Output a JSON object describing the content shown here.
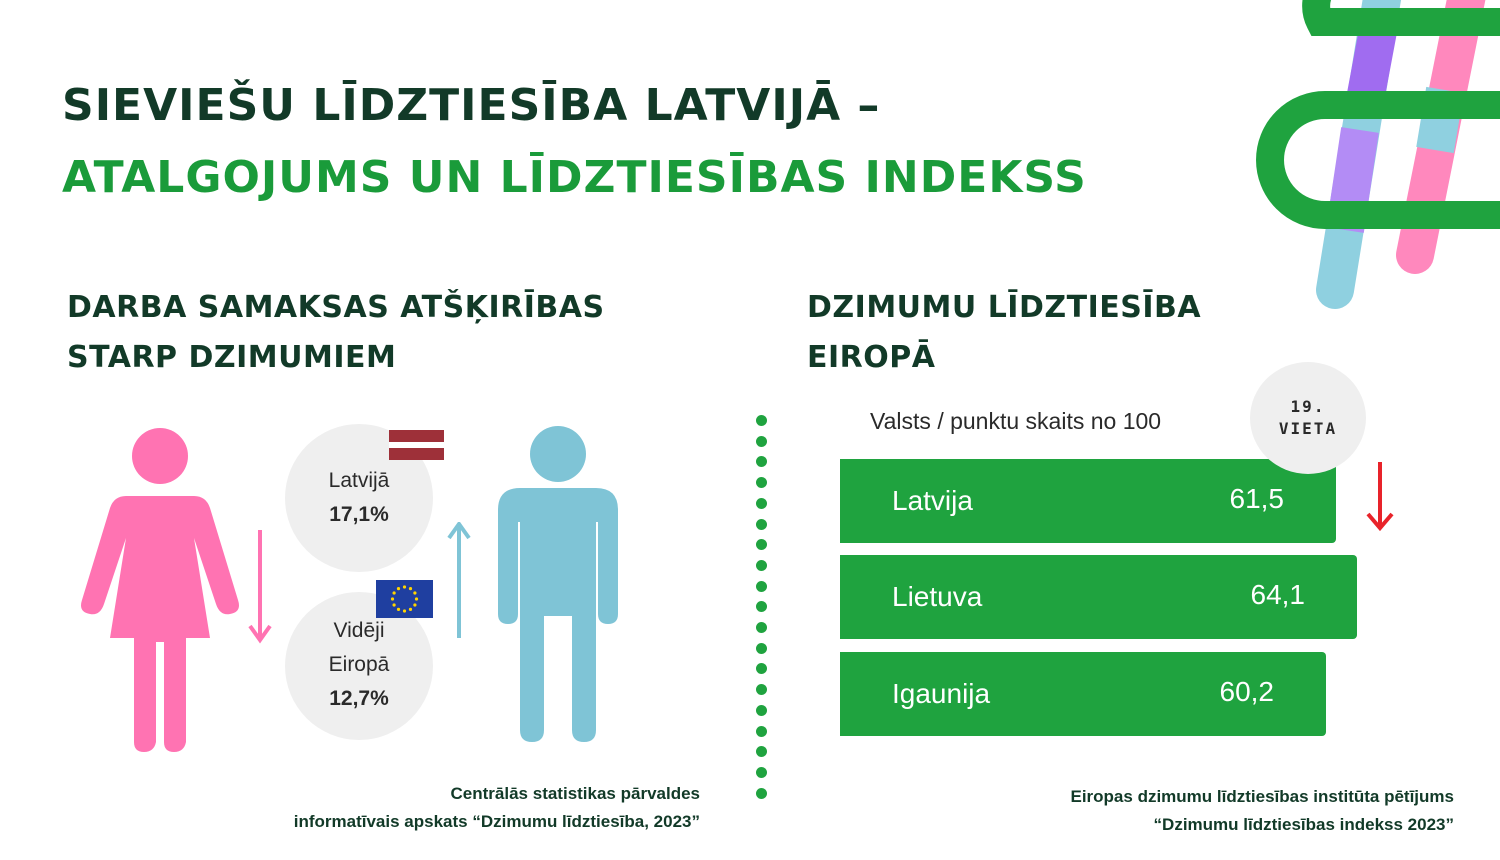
{
  "title": {
    "line1": "SIEVIEŠU LĪDZTIESĪBA LATVIJĀ –",
    "line2": "ATALGOJUMS UN  LĪDZTIESĪBAS INDEKSS"
  },
  "left_section": {
    "title_line1": "DARBA SAMAKSAS ATŠĶIRĪBAS",
    "title_line2": "STARP DZIMUMIEM",
    "latvia": {
      "label": "Latvijā",
      "value": "17,1%"
    },
    "europe": {
      "label_line1": "Vidēji",
      "label_line2": "Eiropā",
      "value": "12,7%"
    },
    "source_line1": "Centrālās statistikas pārvaldes",
    "source_line2": "informatīvais apskats “Dzimumu līdztiesība, 2023”"
  },
  "right_section": {
    "title_line1": "DZIMUMU LĪDZTIESĪBA",
    "title_line2": "EIROPĀ",
    "subtitle": "Valsts / punktu skaits no 100",
    "rank_line1": "19.",
    "rank_line2": "VIETA",
    "source_line1": "Eiropas dzimumu līdztiesības institūta pētījums",
    "source_line2": "“Dzimumu līdztiesības indekss 2023”"
  },
  "chart_data": {
    "type": "bar",
    "orientation": "horizontal",
    "title": "Valsts / punktu skaits no 100",
    "categories": [
      "Latvija",
      "Lietuva",
      "Igaunija"
    ],
    "values": [
      61.5,
      64.1,
      60.2
    ],
    "value_labels": [
      "61,5",
      "64,1",
      "60,2"
    ],
    "xlim": [
      0,
      100
    ]
  },
  "colors": {
    "dark_green": "#123a28",
    "brand_green": "#1fa33f",
    "woman_pink": "#ff73b2",
    "man_blue": "#7fc4d6",
    "arrow_red": "#e8232a",
    "latvia_flag_red": "#9e3039",
    "eu_blue": "#1f3fa0",
    "eu_star_yellow": "#ffd400"
  },
  "icons": [
    "woman-icon",
    "man-icon",
    "latvia-flag-icon",
    "eu-flag-icon",
    "arrow-down-icon",
    "arrow-up-icon",
    "hashtag-logo-icon"
  ]
}
